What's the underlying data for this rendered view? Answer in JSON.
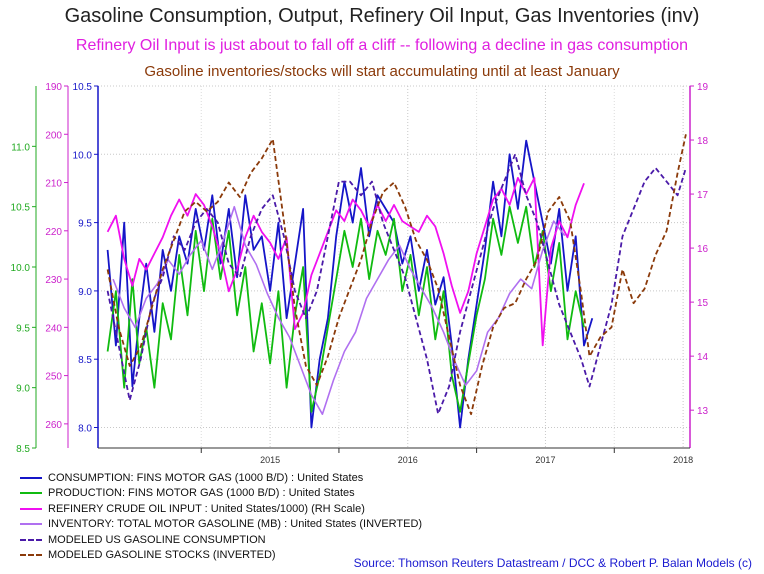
{
  "title": "Gasoline Consumption, Output, Refinery Oil Input, Gas Inventories (inv)",
  "subtitle1": "Refinery Oil Input is just about to fall off a cliff -- following a decline in gas consumption",
  "subtitle2": "Gasoline inventories/stocks will start accumulating until at least January",
  "source": "Source: Thomson Reuters Datastream / DCC & Robert P. Balan Models (c)",
  "colors": {
    "consumption": "#1515c8",
    "production": "#10bb10",
    "refinery": "#f010f0",
    "inventory": "#b070f0",
    "modeled_consumption": "#4a1aa8",
    "modeled_stocks": "#8b3a0a",
    "axis_green": "#22aa22",
    "axis_blue": "#1515c8",
    "axis_magenta": "#cc22cc"
  },
  "chart_data": {
    "type": "line",
    "x_range": [
      2014.25,
      2018.55
    ],
    "x_ticks": [
      {
        "label": "2015",
        "value": 2015.0
      },
      {
        "label": "2016",
        "value": 2016.0
      },
      {
        "label": "2017",
        "value": 2017.0
      },
      {
        "label": "2018",
        "value": 2018.0
      }
    ],
    "axes": {
      "green_left": {
        "range": [
          8.5,
          11.5
        ],
        "ticks": [
          "8.5",
          "9.0",
          "9.5",
          "10.0",
          "10.5",
          "11.0"
        ],
        "tick_values": [
          8.5,
          9.0,
          9.5,
          10.0,
          10.5,
          11.0
        ]
      },
      "purple_left_inverted": {
        "range": [
          190,
          265
        ],
        "ticks": [
          "190",
          "200",
          "210",
          "220",
          "230",
          "240",
          "250",
          "260"
        ],
        "tick_values": [
          190,
          200,
          210,
          220,
          230,
          240,
          250,
          260
        ]
      },
      "blue_left": {
        "range": [
          7.85,
          10.5
        ],
        "ticks": [
          "8.0",
          "8.5",
          "9.0",
          "9.5",
          "10.0",
          "10.5"
        ],
        "tick_values": [
          8.0,
          8.5,
          9.0,
          9.5,
          10.0,
          10.5
        ]
      },
      "right_refinery": {
        "range": [
          12.3,
          19.0
        ],
        "ticks": [
          "13",
          "14",
          "15",
          "16",
          "17",
          "18",
          "19"
        ],
        "tick_values": [
          13,
          14,
          15,
          16,
          17,
          18,
          19
        ]
      }
    },
    "series": [
      {
        "name": "CONSUMPTION: FINS MOTOR GAS (1000 B/D) : United States",
        "axis": "blue_left",
        "x": [
          2014.32,
          2014.38,
          2014.44,
          2014.5,
          2014.55,
          2014.6,
          2014.66,
          2014.72,
          2014.78,
          2014.84,
          2014.9,
          2014.96,
          2015.02,
          2015.08,
          2015.14,
          2015.2,
          2015.26,
          2015.32,
          2015.38,
          2015.44,
          2015.5,
          2015.56,
          2015.62,
          2015.68,
          2015.74,
          2015.8,
          2015.86,
          2015.92,
          2015.98,
          2016.04,
          2016.1,
          2016.16,
          2016.22,
          2016.28,
          2016.34,
          2016.4,
          2016.46,
          2016.52,
          2016.58,
          2016.64,
          2016.7,
          2016.76,
          2016.82,
          2016.88,
          2016.94,
          2017.0,
          2017.06,
          2017.12,
          2017.18,
          2017.24,
          2017.3,
          2017.36,
          2017.42,
          2017.48,
          2017.54,
          2017.6,
          2017.66,
          2017.72,
          2017.78,
          2017.84
        ],
        "values": [
          9.3,
          8.6,
          9.5,
          8.3,
          8.8,
          9.2,
          8.7,
          9.3,
          9.0,
          9.4,
          9.2,
          9.6,
          9.3,
          9.7,
          9.2,
          9.6,
          9.1,
          9.7,
          9.3,
          9.4,
          9.0,
          9.5,
          8.8,
          9.2,
          9.6,
          8.0,
          8.5,
          8.8,
          9.4,
          9.8,
          9.5,
          9.9,
          9.4,
          9.7,
          9.6,
          9.5,
          9.2,
          9.4,
          9.0,
          9.3,
          8.9,
          9.1,
          8.6,
          8.0,
          8.5,
          8.9,
          9.3,
          9.8,
          9.4,
          10.0,
          9.6,
          10.1,
          9.8,
          9.5,
          9.2,
          9.6,
          9.0,
          9.4,
          8.6,
          8.8
        ]
      },
      {
        "name": "PRODUCTION: FINS MOTOR GAS (1000 B/D) : United States",
        "axis": "green_left",
        "x": [
          2014.32,
          2014.38,
          2014.44,
          2014.5,
          2014.55,
          2014.6,
          2014.66,
          2014.72,
          2014.78,
          2014.84,
          2014.9,
          2014.96,
          2015.02,
          2015.08,
          2015.14,
          2015.2,
          2015.26,
          2015.32,
          2015.38,
          2015.44,
          2015.5,
          2015.56,
          2015.62,
          2015.68,
          2015.74,
          2015.8,
          2015.86,
          2015.92,
          2015.98,
          2016.04,
          2016.1,
          2016.16,
          2016.22,
          2016.28,
          2016.34,
          2016.4,
          2016.46,
          2016.52,
          2016.58,
          2016.64,
          2016.7,
          2016.76,
          2016.82,
          2016.88,
          2016.94,
          2017.0,
          2017.06,
          2017.12,
          2017.18,
          2017.24,
          2017.3,
          2017.36,
          2017.42,
          2017.48,
          2017.54,
          2017.6,
          2017.66,
          2017.72,
          2017.78
        ],
        "values": [
          9.3,
          9.8,
          9.0,
          9.9,
          9.2,
          9.5,
          9.0,
          9.7,
          9.4,
          10.1,
          9.6,
          10.3,
          9.8,
          10.4,
          9.9,
          10.3,
          9.6,
          10.0,
          9.3,
          9.7,
          9.2,
          9.8,
          9.0,
          9.6,
          10.0,
          8.8,
          9.1,
          9.5,
          9.9,
          10.3,
          10.0,
          10.4,
          9.9,
          10.3,
          10.1,
          10.4,
          9.8,
          10.1,
          9.6,
          10.0,
          9.4,
          9.8,
          9.1,
          8.8,
          9.2,
          9.6,
          9.9,
          10.4,
          10.1,
          10.5,
          10.2,
          10.5,
          10.0,
          10.3,
          9.8,
          10.2,
          9.4,
          9.8,
          9.5
        ]
      },
      {
        "name": "REFINERY CRUDE OIL INPUT : United States/1000) (RH Scale)",
        "axis": "right_refinery",
        "x": [
          2014.32,
          2014.38,
          2014.44,
          2014.5,
          2014.55,
          2014.6,
          2014.66,
          2014.72,
          2014.78,
          2014.84,
          2014.9,
          2014.96,
          2015.02,
          2015.08,
          2015.14,
          2015.2,
          2015.26,
          2015.32,
          2015.38,
          2015.44,
          2015.5,
          2015.56,
          2015.62,
          2015.68,
          2015.74,
          2015.8,
          2015.86,
          2015.92,
          2015.98,
          2016.04,
          2016.1,
          2016.16,
          2016.22,
          2016.28,
          2016.34,
          2016.4,
          2016.46,
          2016.52,
          2016.58,
          2016.64,
          2016.7,
          2016.76,
          2016.82,
          2016.88,
          2016.94,
          2017.0,
          2017.06,
          2017.12,
          2017.18,
          2017.24,
          2017.3,
          2017.36,
          2017.42,
          2017.48,
          2017.54,
          2017.6,
          2017.66,
          2017.72,
          2017.78
        ],
        "values": [
          16.3,
          16.6,
          15.8,
          15.3,
          15.8,
          15.6,
          15.9,
          16.2,
          16.6,
          16.9,
          16.6,
          17.0,
          16.8,
          16.4,
          15.9,
          15.2,
          15.6,
          16.2,
          16.6,
          16.3,
          16.1,
          15.8,
          16.2,
          14.5,
          14.8,
          15.5,
          15.9,
          16.3,
          16.7,
          16.5,
          16.9,
          16.7,
          16.4,
          16.8,
          16.5,
          16.8,
          16.5,
          16.4,
          16.3,
          16.6,
          16.4,
          15.9,
          15.3,
          14.8,
          15.2,
          15.9,
          16.4,
          16.9,
          17.1,
          16.8,
          17.3,
          17.0,
          17.3,
          14.2,
          16.0,
          16.5,
          16.2,
          16.8,
          17.2
        ]
      },
      {
        "name": "INVENTORY: TOTAL MOTOR GASOLINE (MB) : United States (INVERTED)",
        "axis": "purple_left_inverted",
        "x": [
          2014.36,
          2014.44,
          2014.52,
          2014.6,
          2014.68,
          2014.76,
          2014.84,
          2014.92,
          2015.0,
          2015.08,
          2015.16,
          2015.24,
          2015.32,
          2015.4,
          2015.48,
          2015.56,
          2015.64,
          2015.72,
          2015.8,
          2015.88,
          2015.96,
          2016.04,
          2016.12,
          2016.2,
          2016.28,
          2016.36,
          2016.44,
          2016.52,
          2016.6,
          2016.68,
          2016.76,
          2016.84,
          2016.92,
          2017.0,
          2017.08,
          2017.16,
          2017.24,
          2017.32,
          2017.4,
          2017.48,
          2017.56,
          2017.64
        ],
        "values": [
          230,
          236,
          240,
          234,
          231,
          226,
          229,
          225,
          222,
          228,
          222,
          215,
          223,
          227,
          233,
          238,
          242,
          248,
          254,
          258,
          251,
          245,
          241,
          234,
          230,
          226,
          223,
          228,
          232,
          236,
          241,
          247,
          252,
          249,
          241,
          238,
          233,
          230,
          232,
          224,
          218,
          221
        ]
      },
      {
        "name": "MODELED US GASOLINE CONSUMPTION",
        "axis": "blue_left",
        "x": [
          2014.32,
          2014.4,
          2014.48,
          2014.56,
          2014.64,
          2014.72,
          2014.8,
          2014.88,
          2014.96,
          2015.04,
          2015.12,
          2015.2,
          2015.28,
          2015.36,
          2015.44,
          2015.52,
          2015.6,
          2015.68,
          2015.76,
          2015.84,
          2015.92,
          2016.0,
          2016.08,
          2016.16,
          2016.24,
          2016.32,
          2016.4,
          2016.48,
          2016.56,
          2016.64,
          2016.72,
          2016.8,
          2016.88,
          2016.96,
          2017.04,
          2017.12,
          2017.2,
          2017.28,
          2017.36,
          2017.44,
          2017.52,
          2017.6,
          2017.68,
          2017.76,
          2017.82,
          2017.9,
          2017.98,
          2018.06,
          2018.14,
          2018.22,
          2018.3,
          2018.38,
          2018.46,
          2018.52
        ],
        "values": [
          9.0,
          8.6,
          8.2,
          8.5,
          8.9,
          9.1,
          9.4,
          9.3,
          9.5,
          9.6,
          9.5,
          9.2,
          9.1,
          9.4,
          9.6,
          9.7,
          9.4,
          9.0,
          8.8,
          9.0,
          9.4,
          9.8,
          9.8,
          9.7,
          9.8,
          9.5,
          9.3,
          9.1,
          8.8,
          8.5,
          8.1,
          8.3,
          8.7,
          9.0,
          9.3,
          9.6,
          9.8,
          10.0,
          9.7,
          9.5,
          9.2,
          8.9,
          8.7,
          8.5,
          8.3,
          8.6,
          8.9,
          9.4,
          9.6,
          9.8,
          9.9,
          9.8,
          9.7,
          9.9
        ]
      },
      {
        "name": "MODELED GASOLINE STOCKS (INVERTED)",
        "axis": "purple_left_inverted",
        "x": [
          2014.32,
          2014.4,
          2014.48,
          2014.56,
          2014.64,
          2014.72,
          2014.8,
          2014.88,
          2014.96,
          2015.04,
          2015.12,
          2015.2,
          2015.28,
          2015.36,
          2015.44,
          2015.52,
          2015.6,
          2015.68,
          2015.76,
          2015.84,
          2015.92,
          2016.0,
          2016.08,
          2016.16,
          2016.24,
          2016.32,
          2016.4,
          2016.48,
          2016.56,
          2016.64,
          2016.72,
          2016.8,
          2016.88,
          2016.96,
          2017.04,
          2017.12,
          2017.2,
          2017.28,
          2017.36,
          2017.44,
          2017.52,
          2017.6,
          2017.68,
          2017.76,
          2017.82,
          2017.9,
          2017.98,
          2018.06,
          2018.14,
          2018.22,
          2018.3,
          2018.38,
          2018.46,
          2018.52
        ],
        "values": [
          228,
          240,
          248,
          244,
          236,
          228,
          222,
          216,
          214,
          216,
          214,
          210,
          213,
          208,
          205,
          201,
          218,
          236,
          248,
          252,
          246,
          238,
          232,
          226,
          218,
          212,
          210,
          215,
          222,
          226,
          232,
          242,
          252,
          258,
          248,
          240,
          236,
          235,
          230,
          226,
          216,
          213,
          218,
          233,
          246,
          242,
          240,
          228,
          235,
          232,
          225,
          220,
          208,
          200
        ]
      }
    ]
  }
}
